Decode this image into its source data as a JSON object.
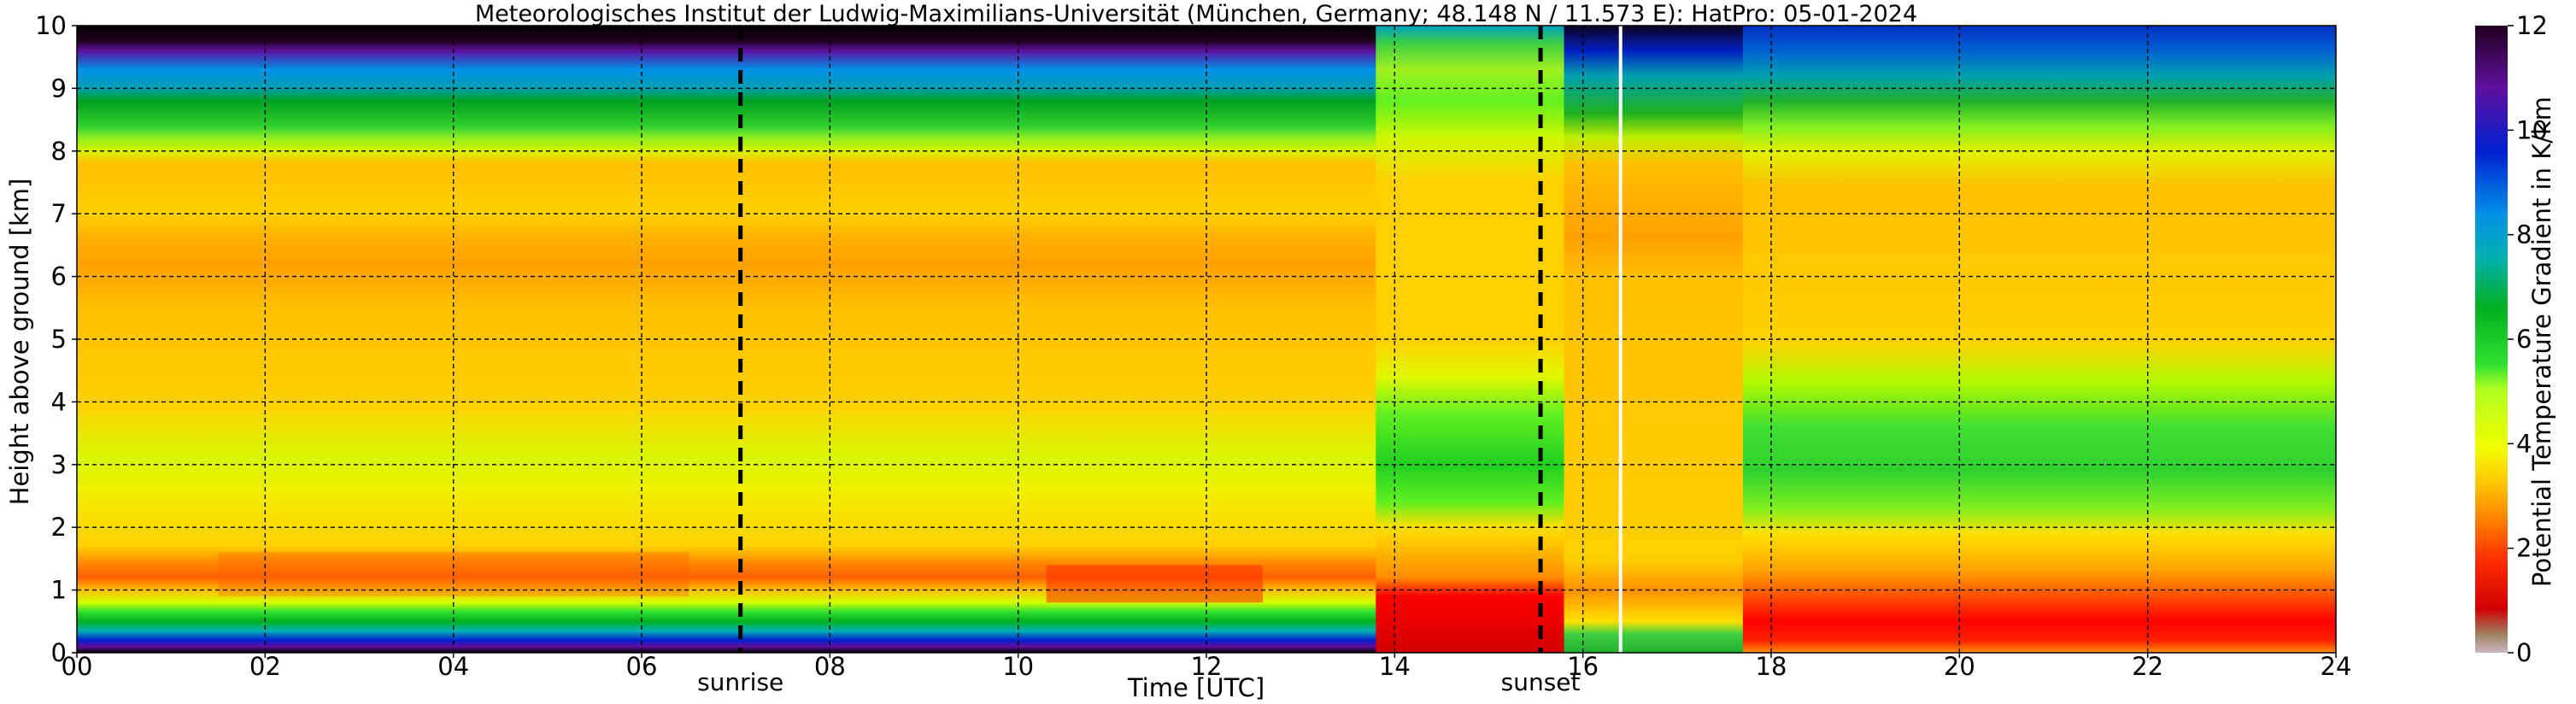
{
  "chart_data": {
    "type": "heatmap",
    "title": "Meteorologisches Institut der Ludwig-Maximilians-Universität (München, Germany; 48.148 N / 11.573 E):    HatPro: 05-01-2024",
    "xlabel": "Time [UTC]",
    "ylabel": "Height above ground [km]",
    "xlim": [
      0,
      24
    ],
    "ylim": [
      0,
      10
    ],
    "x_ticks": [
      "00",
      "02",
      "04",
      "06",
      "08",
      "10",
      "12",
      "14",
      "16",
      "18",
      "20",
      "22",
      "24"
    ],
    "y_ticks": [
      "0",
      "1",
      "2",
      "3",
      "4",
      "5",
      "6",
      "7",
      "8",
      "9",
      "10"
    ],
    "grid": true,
    "colorbar": {
      "label": "Potential Temperature Gradient in K/km",
      "range": [
        0,
        12
      ],
      "ticks": [
        "0",
        "2",
        "4",
        "6",
        "8",
        "10",
        "12"
      ],
      "colors": [
        "#c8b8c0",
        "#a08060",
        "#d00000",
        "#ff3000",
        "#ff8c00",
        "#ffd000",
        "#f0ff00",
        "#b0ff20",
        "#30e030",
        "#00b020",
        "#00b0b0",
        "#0090e8",
        "#0020d0",
        "#6010a0",
        "#200020"
      ]
    },
    "annotations": [
      {
        "text": "sunrise",
        "x": 7.05
      },
      {
        "text": "sunset",
        "x": 15.55
      }
    ],
    "series": [
      {
        "name": "",
        "value_ranges": [
          {
            "x": [
              0,
              13.8
            ],
            "y": [
              0,
              0.15
            ],
            "value": 11.5
          },
          {
            "x": [
              0,
              13.8
            ],
            "y": [
              0.15,
              0.5
            ],
            "value": 8.5
          },
          {
            "x": [
              0,
              13.8
            ],
            "y": [
              0.5,
              0.8
            ],
            "value": 5.5
          },
          {
            "x": [
              0,
              13.8
            ],
            "y": [
              0.8,
              1.6
            ],
            "value": 2.5
          },
          {
            "x": [
              0,
              13.8
            ],
            "y": [
              1.6,
              8.2
            ],
            "value": 3.2
          },
          {
            "x": [
              0,
              24
            ],
            "y": [
              8.2,
              9.0
            ],
            "value": 6.0
          },
          {
            "x": [
              0,
              24
            ],
            "y": [
              9.0,
              9.6
            ],
            "value": 8.5
          },
          {
            "x": [
              0,
              24
            ],
            "y": [
              9.6,
              10
            ],
            "value": 11.5
          },
          {
            "x": [
              13.8,
              15.8
            ],
            "y": [
              0,
              0.9
            ],
            "value": 1.0
          },
          {
            "x": [
              13.8,
              15.8
            ],
            "y": [
              2.0,
              4.0
            ],
            "value": 5.0
          },
          {
            "x": [
              15.8,
              17.7
            ],
            "y": [
              0,
              0.3
            ],
            "value": 6.0
          },
          {
            "x": [
              17.7,
              24
            ],
            "y": [
              0,
              0.9
            ],
            "value": 1.5
          },
          {
            "x": [
              17.7,
              24
            ],
            "y": [
              2.0,
              4.0
            ],
            "value": 5.0
          }
        ]
      }
    ]
  }
}
